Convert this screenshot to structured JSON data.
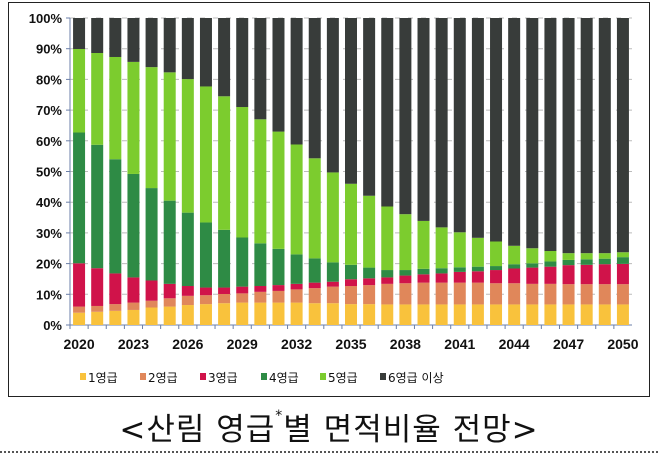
{
  "chart_data": {
    "type": "bar",
    "stacked": true,
    "percent": true,
    "title": "",
    "xlabel": "",
    "ylabel": "",
    "ylim": [
      0,
      100
    ],
    "y_ticks": [
      "0%",
      "10%",
      "20%",
      "30%",
      "40%",
      "50%",
      "60%",
      "70%",
      "80%",
      "90%",
      "100%"
    ],
    "x_tick_labels": [
      "2020",
      "2023",
      "2026",
      "2029",
      "2032",
      "2035",
      "2038",
      "2041",
      "2044",
      "2047",
      "2050"
    ],
    "legend_position": "bottom",
    "categories": [
      "2020",
      "2021",
      "2022",
      "2023",
      "2024",
      "2025",
      "2026",
      "2027",
      "2028",
      "2029",
      "2030",
      "2031",
      "2032",
      "2033",
      "2034",
      "2035",
      "2036",
      "2037",
      "2038",
      "2039",
      "2040",
      "2041",
      "2042",
      "2043",
      "2044",
      "2045",
      "2046",
      "2047",
      "2048",
      "2049",
      "2050"
    ],
    "series": [
      {
        "name": "1영급",
        "color": "#f9c23c",
        "values": [
          4.0,
          4.3,
          4.6,
          4.9,
          5.7,
          6.0,
          6.5,
          6.8,
          7.1,
          7.3,
          7.3,
          7.3,
          7.3,
          7.1,
          7.1,
          6.8,
          6.8,
          6.7,
          6.7,
          6.7,
          6.7,
          6.7,
          6.7,
          6.7,
          6.7,
          6.7,
          6.7,
          6.7,
          6.7,
          6.7,
          6.7
        ]
      },
      {
        "name": "2영급",
        "color": "#e0875a",
        "values": [
          2.0,
          1.9,
          2.2,
          2.4,
          2.2,
          2.7,
          3.0,
          2.9,
          3.0,
          3.0,
          3.5,
          3.8,
          4.3,
          4.9,
          5.4,
          5.9,
          6.2,
          6.7,
          6.9,
          7.1,
          7.1,
          7.1,
          7.1,
          6.9,
          6.9,
          6.7,
          6.7,
          6.6,
          6.6,
          6.6,
          6.6
        ]
      },
      {
        "name": "3영급",
        "color": "#d0134a",
        "values": [
          14.1,
          12.3,
          10.0,
          8.2,
          6.6,
          4.7,
          3.2,
          2.5,
          2.1,
          2.2,
          1.9,
          1.9,
          1.8,
          1.8,
          1.6,
          2.2,
          2.2,
          2.1,
          2.5,
          2.7,
          3.0,
          3.5,
          3.7,
          4.3,
          4.8,
          5.3,
          5.6,
          6.2,
          6.3,
          6.5,
          6.6
        ]
      },
      {
        "name": "4영급",
        "color": "#2e8b45",
        "values": [
          42.6,
          40.2,
          37.2,
          33.7,
          30.1,
          27.1,
          23.9,
          21.2,
          18.8,
          16.0,
          13.9,
          11.8,
          9.6,
          7.9,
          6.3,
          4.7,
          3.5,
          2.4,
          1.8,
          1.8,
          1.7,
          1.5,
          1.5,
          1.3,
          1.4,
          1.4,
          1.7,
          1.7,
          1.8,
          1.8,
          2.2
        ]
      },
      {
        "name": "5영급",
        "color": "#7ccc2e",
        "values": [
          27.2,
          29.9,
          33.3,
          36.5,
          39.4,
          41.8,
          43.5,
          44.3,
          43.5,
          42.5,
          40.4,
          38.2,
          35.8,
          32.6,
          29.3,
          26.4,
          23.4,
          20.7,
          18.2,
          15.6,
          13.3,
          11.4,
          9.4,
          8.0,
          6.0,
          4.9,
          3.4,
          2.2,
          2.0,
          1.8,
          1.6
        ]
      },
      {
        "name": "6영급 이상",
        "color": "#383c3a",
        "values": [
          10.1,
          11.4,
          12.7,
          14.3,
          16.0,
          17.7,
          19.9,
          22.3,
          25.5,
          29.0,
          33.0,
          37.0,
          41.2,
          45.7,
          50.3,
          54.0,
          57.9,
          61.4,
          63.9,
          66.1,
          68.2,
          69.8,
          71.6,
          72.8,
          74.2,
          75.0,
          75.9,
          76.6,
          76.6,
          76.6,
          76.3
        ]
      }
    ]
  },
  "caption": {
    "prefix": "<산림 영급",
    "superscript": "*",
    "suffix": "별 면적비율 전망>"
  }
}
